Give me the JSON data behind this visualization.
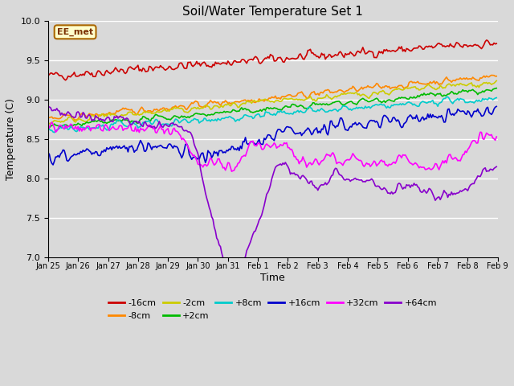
{
  "title": "Soil/Water Temperature Set 1",
  "xlabel": "Time",
  "ylabel": "Temperature (C)",
  "ylim": [
    7.0,
    10.0
  ],
  "yticks": [
    7.0,
    7.5,
    8.0,
    8.5,
    9.0,
    9.5,
    10.0
  ],
  "fig_bg": "#d9d9d9",
  "axes_bg": "#d9d9d9",
  "annotation": "EE_met",
  "series_colors": {
    "-16cm": "#cc0000",
    "-8cm": "#ff8800",
    "-2cm": "#cccc00",
    "+2cm": "#00bb00",
    "+8cm": "#00cccc",
    "+16cm": "#0000cc",
    "+32cm": "#ff00ff",
    "+64cm": "#8800cc"
  },
  "n_points": 360,
  "xtick_labels": [
    "Jan 25",
    "Jan 26",
    "Jan 27",
    "Jan 28",
    "Jan 29",
    "Jan 30",
    "Jan 31",
    "Feb 1",
    "Feb 2",
    "Feb 3",
    "Feb 4",
    "Feb 5",
    "Feb 6",
    "Feb 7",
    "Feb 8",
    "Feb 9"
  ],
  "xtick_positions": [
    0,
    24,
    48,
    72,
    96,
    120,
    144,
    168,
    192,
    216,
    240,
    264,
    288,
    312,
    336,
    360
  ]
}
